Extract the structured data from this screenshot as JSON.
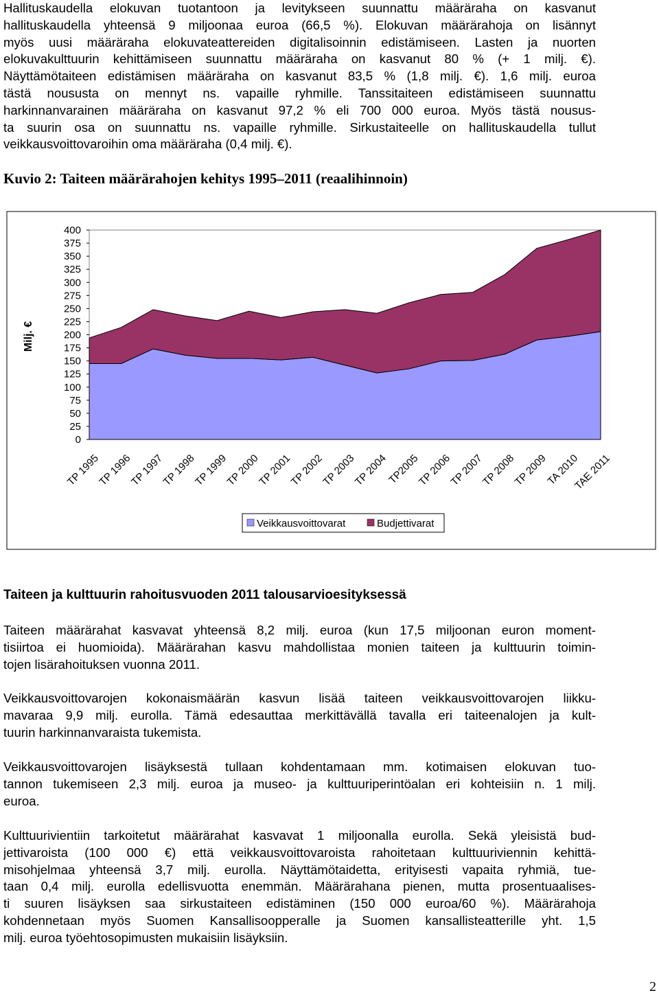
{
  "intro": {
    "lines": [
      "Hallituskaudella elokuvan tuotantoon ja levitykseen suunnattu määräraha on kasvanut",
      "hallituskaudella yhteensä 9 miljoonaa euroa (66,5 %). Elokuvan määrärahoja on lisännyt",
      "myös uusi määräraha elokuvateattereiden digitalisoinnin edistämiseen. Lasten ja nuorten",
      "elokuvakulttuurin kehittämiseen suunnattu määräraha on kasvanut 80 % (+ 1 milj. €).",
      "Näyttämötaiteen edistämisen määräraha on kasvanut 83,5 % (1,8 milj. €). 1,6 milj. euroa",
      "tästä noususta on mennyt ns. vapaille ryhmille. Tanssitaiteen edistämiseen suunnattu",
      "harkinnanvarainen määräraha on kasvanut 97,2 % eli 700 000 euroa. Myös tästä nousus-",
      "ta suurin osa on suunnattu ns. vapaille ryhmille. Sirkustaiteelle on hallituskaudella tullut",
      "veikkausvoittovaroihin oma määräraha (0,4 milj. €)."
    ]
  },
  "figure_caption": "Kuvio 2: Taiteen määrärahojen kehitys 1995–2011 (reaalihinnoin)",
  "chart_data": {
    "type": "stacked_area",
    "y_label": "Milj. €",
    "categories": [
      "TP 1995",
      "TP 1996",
      "TP 1997",
      "TP 1998",
      "TP 1999",
      "TP 2000",
      "TP 2001",
      "TP 2002",
      "TP 2003",
      "TP 2004",
      "TP2005",
      "TP 2006",
      "TP 2007",
      "TP 2008",
      "TP 2009",
      "TA 2010",
      "TAE 2011"
    ],
    "series": [
      {
        "name": "Veikkausvoittovarat",
        "color": "#9999ff",
        "values": [
          145,
          145,
          173,
          161,
          155,
          155,
          152,
          157,
          142,
          127,
          135,
          150,
          151,
          163,
          190,
          197,
          206
        ]
      },
      {
        "name": "Budjettivarat",
        "color": "#993366",
        "values": [
          49,
          69,
          75,
          75,
          72,
          90,
          81,
          87,
          106,
          114,
          126,
          127,
          130,
          152,
          175,
          185,
          194
        ]
      }
    ],
    "ylim": [
      0,
      400
    ],
    "yticks": [
      0,
      25,
      50,
      75,
      100,
      125,
      150,
      175,
      200,
      225,
      250,
      275,
      300,
      325,
      350,
      375,
      400
    ],
    "grid": false,
    "legend": "bottom"
  },
  "section_heading": "Taiteen ja kulttuurin rahoitusvuoden 2011 talousarvioesityksessä",
  "paragraphs": [
    {
      "lines": [
        "Taiteen määrärahat kasvavat yhteensä 8,2 milj. euroa (kun 17,5 miljoonan euron moment-",
        "tisiirtoa ei huomioida). Määrärahan kasvu mahdollistaa monien taiteen ja kulttuurin toimin-",
        "tojen lisärahoituksen vuonna 2011."
      ]
    },
    {
      "lines": [
        "Veikkausvoittovarojen kokonaismäärän kasvun lisää taiteen veikkausvoittovarojen liikku-",
        "mavaraa 9,9 milj. eurolla. Tämä edesauttaa merkittävällä tavalla eri taiteenalojen ja kult-",
        "tuurin harkinnanvaraista tukemista."
      ]
    },
    {
      "lines": [
        "Veikkausvoittovarojen lisäyksestä tullaan kohdentamaan mm. kotimaisen elokuvan tuo-",
        "tannon tukemiseen 2,3 milj. euroa ja museo- ja kulttuuriperintöalan eri kohteisiin n. 1 milj.",
        "euroa."
      ]
    },
    {
      "lines": [
        "Kulttuurivientiin tarkoitetut määrärahat kasvavat 1 miljoonalla eurolla. Sekä yleisistä bud-",
        "jettivaroista (100 000 €) että veikkausvoittovaroista rahoitetaan kulttuuriviennin kehittä-",
        "misohjelmaa yhteensä 3,7 milj. eurolla.  Näyttämötaidetta, erityisesti vapaita ryhmiä, tue-",
        "taan 0,4 milj. eurolla edellisvuotta enemmän. Määrärahana pienen, mutta prosentuaalises-",
        "ti suuren lisäyksen saa sirkustaiteen edistäminen (150 000 euroa/60 %). Määrärahoja",
        "kohdennetaan myös Suomen Kansallisoopperalle ja Suomen kansallisteatterille yht. 1,5",
        "milj. euroa työehtosopimusten mukaisiin lisäyksiin."
      ]
    }
  ],
  "page_number": "2"
}
